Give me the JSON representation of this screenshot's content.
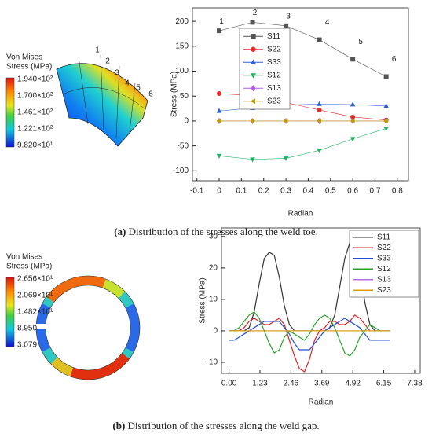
{
  "chart_data": [
    {
      "type": "line",
      "xlabel": "Radian",
      "ylabel": "Stress (MPa)",
      "x": [
        0,
        0.15,
        0.3,
        0.45,
        0.6,
        0.75
      ],
      "series": [
        {
          "name": "S11",
          "color": "#555555",
          "marker": "square",
          "values": [
            181,
            198,
            191,
            163,
            124,
            89
          ]
        },
        {
          "name": "S22",
          "color": "#e03030",
          "marker": "circle",
          "values": [
            55,
            51,
            37,
            22,
            8,
            2
          ]
        },
        {
          "name": "S33",
          "color": "#3060d0",
          "marker": "triangle-up",
          "values": [
            20,
            26,
            32,
            34,
            33,
            30
          ]
        },
        {
          "name": "S12",
          "color": "#20b060",
          "marker": "triangle-down",
          "values": [
            -70,
            -77,
            -75,
            -59,
            -36,
            -15
          ]
        },
        {
          "name": "S13",
          "color": "#b060e0",
          "marker": "diamond",
          "values": [
            0,
            0,
            0,
            0,
            0,
            0
          ]
        },
        {
          "name": "S23",
          "color": "#c0a000",
          "marker": "triangle-left",
          "values": [
            0,
            0,
            0,
            0,
            0,
            0
          ]
        }
      ],
      "point_labels": [
        "1",
        "2",
        "3",
        "4",
        "5",
        "6"
      ],
      "xlim": [
        -0.12,
        0.85
      ],
      "xticks": [
        -0.1,
        0,
        0.1,
        0.2,
        0.3,
        0.4,
        0.5,
        0.6,
        0.7,
        0.8
      ],
      "ylim": [
        -120,
        227
      ],
      "yticks": [
        -100,
        -50,
        0,
        50,
        100,
        150,
        200
      ],
      "legend": "upper left",
      "grid": false
    },
    {
      "type": "line",
      "xlabel": "Radian",
      "ylabel": "Stress (MPa)",
      "x": [
        0,
        0.2,
        0.4,
        0.6,
        0.8,
        1.0,
        1.2,
        1.4,
        1.6,
        1.8,
        2.0,
        2.2,
        2.4,
        2.6,
        2.8,
        3.0,
        3.2,
        3.4,
        3.6,
        3.8,
        4.0,
        4.2,
        4.4,
        4.6,
        4.8,
        5.0,
        5.2,
        5.4,
        5.6,
        5.8,
        6.0,
        6.2,
        6.4
      ],
      "series": [
        {
          "name": "S11",
          "color": "#333333",
          "values": [
            0,
            0,
            0,
            0,
            1,
            6,
            15,
            23,
            25,
            24,
            17,
            8,
            2,
            0,
            0,
            0,
            0,
            0,
            0,
            0,
            1,
            5,
            14,
            23,
            28,
            27,
            20,
            9,
            2,
            0,
            0,
            0,
            0
          ]
        },
        {
          "name": "S22",
          "color": "#e02020",
          "values": [
            0,
            0,
            0,
            1,
            3,
            4,
            3,
            2,
            2,
            3,
            4,
            2,
            -3,
            -8,
            -12,
            -13,
            -9,
            -3,
            0,
            1,
            3,
            3,
            2,
            2,
            3,
            5,
            4,
            2,
            0,
            0,
            0,
            0,
            0
          ]
        },
        {
          "name": "S33",
          "color": "#1f4fd1",
          "values": [
            -3,
            -3,
            -2,
            -1,
            0,
            1,
            2,
            3,
            3,
            3,
            3,
            1,
            -1,
            -4,
            -6,
            -6,
            -6,
            -4,
            -2,
            0,
            1,
            2,
            3,
            4,
            3,
            2,
            1,
            -1,
            -3,
            -3,
            -3,
            -3,
            -3
          ]
        },
        {
          "name": "S12",
          "color": "#2ca02c",
          "values": [
            0,
            0,
            1,
            3,
            5,
            6,
            4,
            0,
            -4,
            -7,
            -6,
            -2,
            0,
            -1,
            -2,
            -3,
            -1,
            2,
            4,
            5,
            4,
            1,
            -3,
            -7,
            -8,
            -6,
            -2,
            0,
            2,
            1,
            0,
            0,
            0
          ]
        },
        {
          "name": "S13",
          "color": "#b070e0",
          "values": [
            0,
            0,
            0,
            0,
            0,
            0,
            0,
            0,
            0,
            0,
            0,
            0,
            0,
            0,
            0,
            0,
            0,
            0,
            0,
            0,
            0,
            0,
            0,
            0,
            0,
            0,
            0,
            0,
            0,
            0,
            0,
            0,
            0
          ]
        },
        {
          "name": "S23",
          "color": "#e0a000",
          "values": [
            0,
            0,
            0,
            0,
            0,
            0,
            0,
            0,
            0,
            0,
            0,
            0,
            0,
            0,
            0,
            0,
            0,
            0,
            0,
            0,
            0,
            0,
            0,
            0,
            0,
            0,
            0,
            0,
            0,
            0,
            0,
            0,
            0
          ]
        }
      ],
      "xlim": [
        -0.3,
        7.6
      ],
      "xticks": [
        {
          "value": 0,
          "label": "0.00"
        },
        1.23,
        2.46,
        3.69,
        4.92,
        6.15,
        7.38
      ],
      "ylim": [
        -13.5,
        32.7
      ],
      "yticks": [
        -10,
        0,
        10,
        20,
        30
      ],
      "legend": "upper right",
      "grid": false
    }
  ],
  "figures": [
    {
      "colorbar_title": [
        "Von Mises",
        "Stress (MPa)"
      ],
      "colorbar_labels": [
        "1.940×10²",
        "1.700×10²",
        "1.461×10²",
        "1.221×10²",
        "9.820×10¹"
      ],
      "labels": [
        "1",
        "2",
        "3",
        "4",
        "5",
        "6"
      ],
      "caption_label": "(a)",
      "caption": " Distribution of the stresses along the weld toe."
    },
    {
      "colorbar_title": [
        "Von Mises",
        "Stress (MPa)"
      ],
      "colorbar_labels": [
        "2.656×10¹",
        "2.069×10¹",
        "1.482×10¹",
        "8.950",
        "3.079"
      ],
      "caption_label": "(b)",
      "caption": " Distribution of the stresses along the weld gap."
    }
  ]
}
